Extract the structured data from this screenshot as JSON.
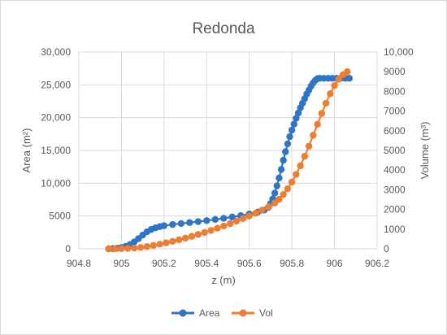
{
  "chart_data": {
    "type": "scatter",
    "title": "Redonda",
    "xlabel": "z (m)",
    "ylabel_left": "Area (m²)",
    "ylabel_right": "Volume (m³)",
    "xlim": [
      904.8,
      906.2
    ],
    "x_ticks": [
      "904.8",
      "905",
      "905.2",
      "905.4",
      "905.6",
      "905.8",
      "906",
      "906.2"
    ],
    "ylim_left": [
      0,
      30000
    ],
    "y_left_ticks": [
      "0",
      "5000",
      "10,000",
      "15,000",
      "20,000",
      "25,000",
      "30,000"
    ],
    "ylim_right": [
      0,
      10000
    ],
    "y_right_ticks": [
      "0",
      "1000",
      "2000",
      "3000",
      "4000",
      "5000",
      "6000",
      "7000",
      "8000",
      "9000",
      "10,000"
    ],
    "grid": "vertical and horizontal major gridlines",
    "legend_position": "bottom",
    "series": [
      {
        "name": "Area",
        "axis": "left",
        "color": "#2e75c7",
        "marker": "circle",
        "points": [
          [
            904.94,
            0
          ],
          [
            904.96,
            30
          ],
          [
            904.98,
            90
          ],
          [
            905.0,
            200
          ],
          [
            905.02,
            380
          ],
          [
            905.04,
            650
          ],
          [
            905.06,
            1050
          ],
          [
            905.08,
            1550
          ],
          [
            905.1,
            2100
          ],
          [
            905.12,
            2600
          ],
          [
            905.14,
            2950
          ],
          [
            905.16,
            3200
          ],
          [
            905.18,
            3380
          ],
          [
            905.2,
            3520
          ],
          [
            905.24,
            3700
          ],
          [
            905.28,
            3850
          ],
          [
            905.32,
            4000
          ],
          [
            905.36,
            4150
          ],
          [
            905.4,
            4300
          ],
          [
            905.44,
            4470
          ],
          [
            905.48,
            4650
          ],
          [
            905.52,
            4850
          ],
          [
            905.56,
            5050
          ],
          [
            905.6,
            5300
          ],
          [
            905.64,
            5600
          ],
          [
            905.67,
            5900
          ],
          [
            905.69,
            6300
          ],
          [
            905.7,
            6900
          ],
          [
            905.71,
            7600
          ],
          [
            905.72,
            8500
          ],
          [
            905.73,
            9600
          ],
          [
            905.74,
            10800
          ],
          [
            905.75,
            12100
          ],
          [
            905.76,
            13500
          ],
          [
            905.77,
            14800
          ],
          [
            905.78,
            16000
          ],
          [
            905.79,
            17100
          ],
          [
            905.8,
            18100
          ],
          [
            905.81,
            19000
          ],
          [
            905.82,
            19900
          ],
          [
            905.83,
            20700
          ],
          [
            905.84,
            21500
          ],
          [
            905.85,
            22200
          ],
          [
            905.86,
            22900
          ],
          [
            905.87,
            23600
          ],
          [
            905.88,
            24200
          ],
          [
            905.89,
            24800
          ],
          [
            905.9,
            25300
          ],
          [
            905.91,
            25700
          ],
          [
            905.92,
            25950
          ],
          [
            905.93,
            26000
          ],
          [
            905.95,
            26000
          ],
          [
            905.97,
            26000
          ],
          [
            905.99,
            26000
          ],
          [
            906.01,
            26000
          ],
          [
            906.03,
            26000
          ],
          [
            906.05,
            26000
          ],
          [
            906.07,
            26000
          ]
        ]
      },
      {
        "name": "Vol",
        "axis": "right",
        "color": "#ed7d31",
        "marker": "circle",
        "points": [
          [
            904.94,
            0
          ],
          [
            904.97,
            2
          ],
          [
            905.0,
            8
          ],
          [
            905.03,
            20
          ],
          [
            905.06,
            40
          ],
          [
            905.09,
            70
          ],
          [
            905.12,
            115
          ],
          [
            905.15,
            170
          ],
          [
            905.18,
            235
          ],
          [
            905.21,
            305
          ],
          [
            905.24,
            380
          ],
          [
            905.27,
            460
          ],
          [
            905.3,
            545
          ],
          [
            905.33,
            635
          ],
          [
            905.36,
            730
          ],
          [
            905.39,
            830
          ],
          [
            905.42,
            935
          ],
          [
            905.45,
            1045
          ],
          [
            905.48,
            1160
          ],
          [
            905.51,
            1280
          ],
          [
            905.54,
            1405
          ],
          [
            905.57,
            1535
          ],
          [
            905.6,
            1670
          ],
          [
            905.63,
            1810
          ],
          [
            905.66,
            1960
          ],
          [
            905.69,
            2130
          ],
          [
            905.72,
            2330
          ],
          [
            905.74,
            2520
          ],
          [
            905.76,
            2760
          ],
          [
            905.78,
            3050
          ],
          [
            905.8,
            3390
          ],
          [
            905.82,
            3780
          ],
          [
            905.84,
            4220
          ],
          [
            905.86,
            4700
          ],
          [
            905.88,
            5220
          ],
          [
            905.9,
            5770
          ],
          [
            905.92,
            6330
          ],
          [
            905.94,
            6880
          ],
          [
            905.96,
            7400
          ],
          [
            905.98,
            7880
          ],
          [
            906.0,
            8300
          ],
          [
            906.02,
            8620
          ],
          [
            906.04,
            8850
          ],
          [
            906.06,
            9000
          ]
        ]
      }
    ]
  }
}
